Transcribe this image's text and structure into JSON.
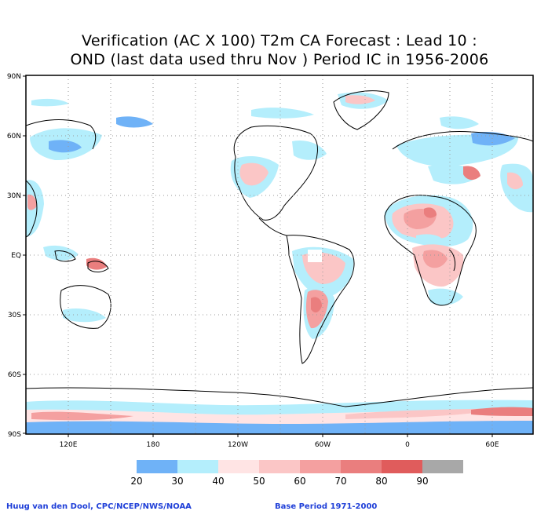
{
  "title": {
    "line1": "Verification (AC X 100) T2m CA Forecast : Lead 10 :",
    "line2": "OND (last data used thru Nov ) Period IC in 1956-2006"
  },
  "axes": {
    "lat_labels": [
      "90N",
      "60N",
      "30N",
      "EQ",
      "30S",
      "60S",
      "90S"
    ],
    "lon_labels": [
      "120E",
      "180",
      "120W",
      "60W",
      "0",
      "60E"
    ]
  },
  "legend": {
    "ticks": [
      "20",
      "30",
      "40",
      "50",
      "60",
      "70",
      "80",
      "90"
    ],
    "colors": [
      "#6fb2f7",
      "#b4eefc",
      "#ffe4e4",
      "#fbc6c6",
      "#f4a0a0",
      "#ea7e7e",
      "#e05c5c",
      "#a8a8a8"
    ]
  },
  "footer": {
    "left": "Huug van den Dool, CPC/NCEP/NWS/NOAA",
    "right": "Base Period 1971-2000"
  },
  "colors": {
    "frame": "#000000",
    "grid": "#9a9a9a",
    "coast": "#000000"
  }
}
